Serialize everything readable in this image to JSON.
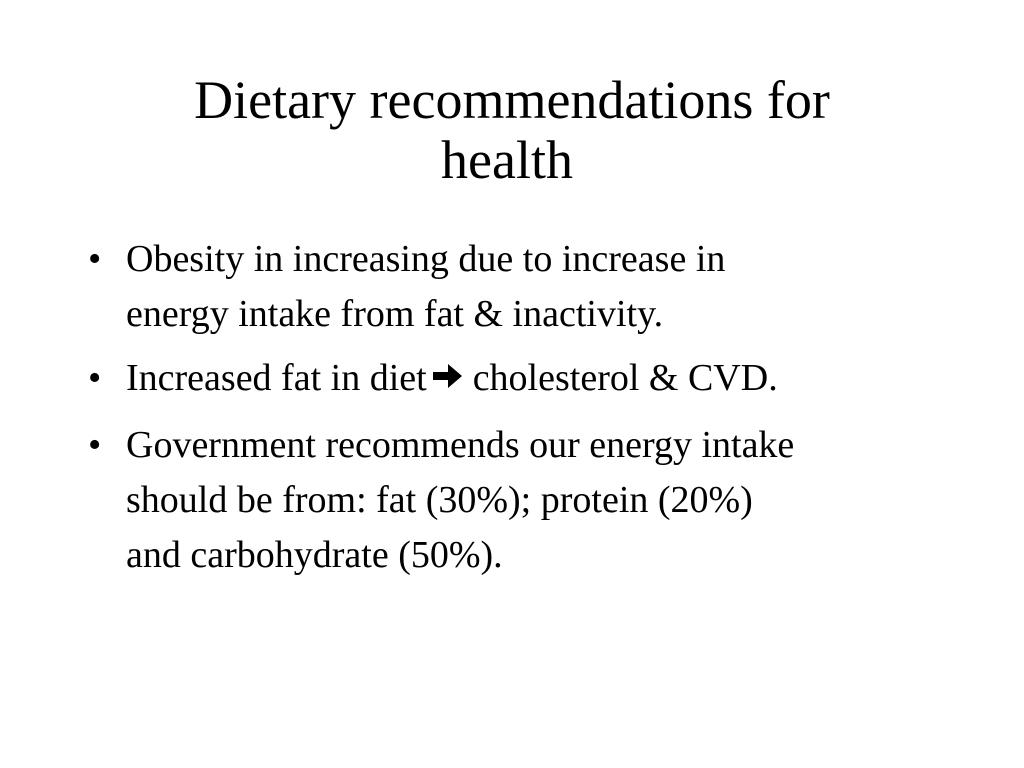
{
  "slide": {
    "title_line1": "Dietary recommendations for",
    "title_line2": "health",
    "bullet_glyph": "•",
    "bullets": [
      {
        "line1": "Obesity in increasing due to increase in",
        "line2": "energy intake from fat & inactivity."
      },
      {
        "before": "Increased fat in diet",
        "icon": "right-arrow-icon",
        "after": "cholesterol & CVD."
      },
      {
        "line1": "Government recommends our energy intake",
        "line2": "should be from: fat (30%); protein (20%)",
        "line3": "and carbohydrate (50%)."
      }
    ]
  },
  "colors": {
    "background": "#ffffff",
    "text": "#000000"
  }
}
